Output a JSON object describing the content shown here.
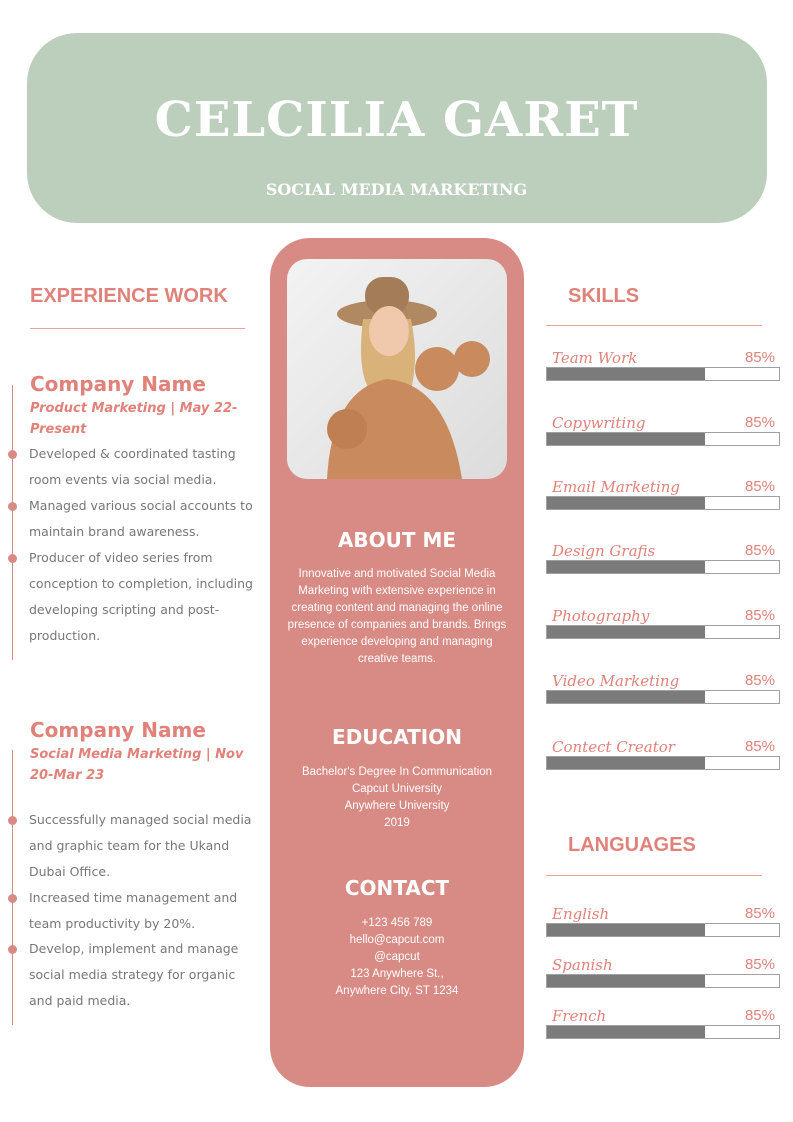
{
  "header": {
    "name": "CELCILIA GARET",
    "role": "SOCIAL MEDIA MARKETING",
    "bg_color": "#bccfbc"
  },
  "accent_color": "#d88a84",
  "experience": {
    "title": "EXPERIENCE WORK",
    "jobs": [
      {
        "company": "Company Name",
        "position": "Product Marketing | May 22-Present",
        "bullets": [
          "Developed & coordinated tasting room events via social media.",
          "Managed various social accounts to maintain brand awareness.",
          "Producer of video series from conception to completion, including developing scripting and post-production."
        ]
      },
      {
        "company": "Company Name",
        "position": "Social Media Marketing | Nov 20-Mar 23",
        "bullets": [
          "Successfully managed social media and graphic team for the Ukand Dubai Office.",
          "Increased time management and team productivity by 20%.",
          "Develop, implement and manage social media strategy for organic and paid media."
        ]
      }
    ]
  },
  "photo": {
    "icon": "profile-photo"
  },
  "about": {
    "title": "ABOUT ME",
    "text": "Innovative and motivated Social Media Marketing with extensive experience in creating content and managing the online presence of companies and brands. Brings experience developing and managing creative teams."
  },
  "education": {
    "title": "EDUCATION",
    "lines": [
      "Bachelor's Degree In Communication",
      "Capcut University",
      "Anywhere University",
      "2019"
    ]
  },
  "contact": {
    "title": "CONTACT",
    "lines": [
      "+123  456 789",
      "hello@capcut.com",
      "@capcut",
      "123 Anywhere St.,",
      "Anywhere City, ST 1234"
    ]
  },
  "skills": {
    "title": "SKILLS",
    "items": [
      {
        "label": "Team Work",
        "percent": "85%",
        "fill": 68
      },
      {
        "label": "Copywriting",
        "percent": "85%",
        "fill": 68
      },
      {
        "label": "Email Marketing",
        "percent": "85%",
        "fill": 68
      },
      {
        "label": "Design Grafis",
        "percent": "85%",
        "fill": 68
      },
      {
        "label": "Photography",
        "percent": "85%",
        "fill": 68
      },
      {
        "label": "Video Marketing",
        "percent": "85%",
        "fill": 68
      },
      {
        "label": "Contect Creator",
        "percent": "85%",
        "fill": 68
      }
    ]
  },
  "languages": {
    "title": "LANGUAGES",
    "items": [
      {
        "label": "English",
        "percent": "85%",
        "fill": 68
      },
      {
        "label": "Spanish",
        "percent": "85%",
        "fill": 68
      },
      {
        "label": "French",
        "percent": "85%",
        "fill": 68
      }
    ]
  }
}
